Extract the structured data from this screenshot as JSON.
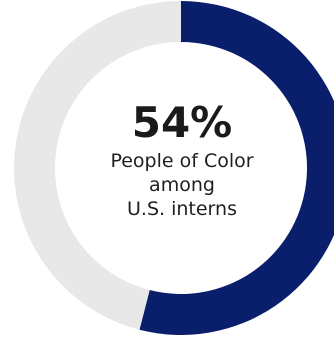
{
  "chart_data": {
    "type": "pie",
    "donut": true,
    "slices": [
      {
        "label": "People of Color",
        "value": 54,
        "color": "#0a1f6b"
      },
      {
        "label": "",
        "value": 46,
        "color": "#e8e8e8"
      }
    ],
    "center_value": "54%",
    "center_caption_lines": [
      "People of Color",
      "among",
      "U.S. interns"
    ]
  }
}
